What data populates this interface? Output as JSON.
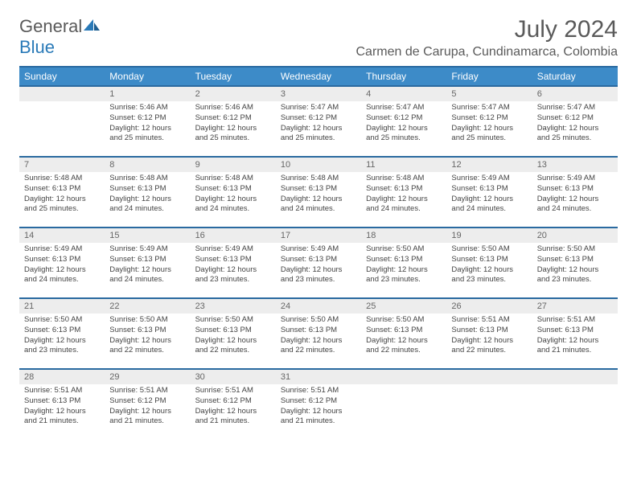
{
  "logo": {
    "black": "General",
    "blue": "Blue"
  },
  "title": "July 2024",
  "location": "Carmen de Carupa, Cundinamarca, Colombia",
  "colors": {
    "header_bg": "#3d8bc8",
    "header_border": "#2a6aa0",
    "daynum_bg": "#ededed",
    "text": "#5a5a5a"
  },
  "weekdays": [
    "Sunday",
    "Monday",
    "Tuesday",
    "Wednesday",
    "Thursday",
    "Friday",
    "Saturday"
  ],
  "weeks": [
    [
      {
        "n": "",
        "sr": "",
        "ss": "",
        "dl": ""
      },
      {
        "n": "1",
        "sr": "5:46 AM",
        "ss": "6:12 PM",
        "dl": "12 hours and 25 minutes."
      },
      {
        "n": "2",
        "sr": "5:46 AM",
        "ss": "6:12 PM",
        "dl": "12 hours and 25 minutes."
      },
      {
        "n": "3",
        "sr": "5:47 AM",
        "ss": "6:12 PM",
        "dl": "12 hours and 25 minutes."
      },
      {
        "n": "4",
        "sr": "5:47 AM",
        "ss": "6:12 PM",
        "dl": "12 hours and 25 minutes."
      },
      {
        "n": "5",
        "sr": "5:47 AM",
        "ss": "6:12 PM",
        "dl": "12 hours and 25 minutes."
      },
      {
        "n": "6",
        "sr": "5:47 AM",
        "ss": "6:12 PM",
        "dl": "12 hours and 25 minutes."
      }
    ],
    [
      {
        "n": "7",
        "sr": "5:48 AM",
        "ss": "6:13 PM",
        "dl": "12 hours and 25 minutes."
      },
      {
        "n": "8",
        "sr": "5:48 AM",
        "ss": "6:13 PM",
        "dl": "12 hours and 24 minutes."
      },
      {
        "n": "9",
        "sr": "5:48 AM",
        "ss": "6:13 PM",
        "dl": "12 hours and 24 minutes."
      },
      {
        "n": "10",
        "sr": "5:48 AM",
        "ss": "6:13 PM",
        "dl": "12 hours and 24 minutes."
      },
      {
        "n": "11",
        "sr": "5:48 AM",
        "ss": "6:13 PM",
        "dl": "12 hours and 24 minutes."
      },
      {
        "n": "12",
        "sr": "5:49 AM",
        "ss": "6:13 PM",
        "dl": "12 hours and 24 minutes."
      },
      {
        "n": "13",
        "sr": "5:49 AM",
        "ss": "6:13 PM",
        "dl": "12 hours and 24 minutes."
      }
    ],
    [
      {
        "n": "14",
        "sr": "5:49 AM",
        "ss": "6:13 PM",
        "dl": "12 hours and 24 minutes."
      },
      {
        "n": "15",
        "sr": "5:49 AM",
        "ss": "6:13 PM",
        "dl": "12 hours and 24 minutes."
      },
      {
        "n": "16",
        "sr": "5:49 AM",
        "ss": "6:13 PM",
        "dl": "12 hours and 23 minutes."
      },
      {
        "n": "17",
        "sr": "5:49 AM",
        "ss": "6:13 PM",
        "dl": "12 hours and 23 minutes."
      },
      {
        "n": "18",
        "sr": "5:50 AM",
        "ss": "6:13 PM",
        "dl": "12 hours and 23 minutes."
      },
      {
        "n": "19",
        "sr": "5:50 AM",
        "ss": "6:13 PM",
        "dl": "12 hours and 23 minutes."
      },
      {
        "n": "20",
        "sr": "5:50 AM",
        "ss": "6:13 PM",
        "dl": "12 hours and 23 minutes."
      }
    ],
    [
      {
        "n": "21",
        "sr": "5:50 AM",
        "ss": "6:13 PM",
        "dl": "12 hours and 23 minutes."
      },
      {
        "n": "22",
        "sr": "5:50 AM",
        "ss": "6:13 PM",
        "dl": "12 hours and 22 minutes."
      },
      {
        "n": "23",
        "sr": "5:50 AM",
        "ss": "6:13 PM",
        "dl": "12 hours and 22 minutes."
      },
      {
        "n": "24",
        "sr": "5:50 AM",
        "ss": "6:13 PM",
        "dl": "12 hours and 22 minutes."
      },
      {
        "n": "25",
        "sr": "5:50 AM",
        "ss": "6:13 PM",
        "dl": "12 hours and 22 minutes."
      },
      {
        "n": "26",
        "sr": "5:51 AM",
        "ss": "6:13 PM",
        "dl": "12 hours and 22 minutes."
      },
      {
        "n": "27",
        "sr": "5:51 AM",
        "ss": "6:13 PM",
        "dl": "12 hours and 21 minutes."
      }
    ],
    [
      {
        "n": "28",
        "sr": "5:51 AM",
        "ss": "6:13 PM",
        "dl": "12 hours and 21 minutes."
      },
      {
        "n": "29",
        "sr": "5:51 AM",
        "ss": "6:12 PM",
        "dl": "12 hours and 21 minutes."
      },
      {
        "n": "30",
        "sr": "5:51 AM",
        "ss": "6:12 PM",
        "dl": "12 hours and 21 minutes."
      },
      {
        "n": "31",
        "sr": "5:51 AM",
        "ss": "6:12 PM",
        "dl": "12 hours and 21 minutes."
      },
      {
        "n": "",
        "sr": "",
        "ss": "",
        "dl": ""
      },
      {
        "n": "",
        "sr": "",
        "ss": "",
        "dl": ""
      },
      {
        "n": "",
        "sr": "",
        "ss": "",
        "dl": ""
      }
    ]
  ],
  "labels": {
    "sunrise": "Sunrise:",
    "sunset": "Sunset:",
    "daylight": "Daylight:"
  }
}
